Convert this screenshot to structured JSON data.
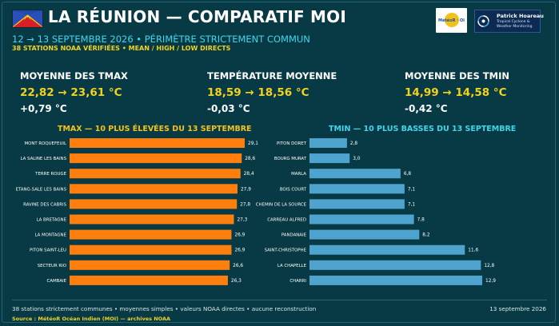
{
  "header": {
    "title": "LA RÉUNION — COMPARATIF MOI",
    "subtitle": "12 → 13 SEPTEMBRE 2026 • PÉRIMÈTRE STRICTEMENT COMMUN",
    "subline": "38 STATIONS NOAA VÉRIFIÉES • MEAN / HIGH / LOW DIRECTS",
    "logo_meteor": "MétéoR · OI",
    "logo_ph_name": "Patrick Hoareau",
    "logo_ph_line2": "Tropical Cyclone &",
    "logo_ph_line3": "Weather Monitoring"
  },
  "stats": [
    {
      "label": "MOYENNE DES TMAX",
      "value": "22,82 → 23,61 °C",
      "delta": "+0,79 °C"
    },
    {
      "label": "TEMPÉRATURE MOYENNE",
      "value": "18,59 → 18,56 °C",
      "delta": "-0,03 °C"
    },
    {
      "label": "MOYENNE DES TMIN",
      "value": "14,99 → 14,58 °C",
      "delta": "-0,42 °C"
    }
  ],
  "chart_data": [
    {
      "type": "bar",
      "orientation": "horizontal",
      "title": "TMAX — 10 PLUS ÉLEVÉES DU 13 SEPTEMBRE",
      "color": "#ff7f0e",
      "categories": [
        "MONT ROQUEFEUIL",
        "LA SALINE LES BAINS",
        "TERRE ROUGE",
        "ETANG-SALE LES BAINS",
        "RAVINE DES CABRIS",
        "LA BRETAGNE",
        "LA MONTAGNE",
        "PITON SAINT-LEU",
        "SECTEUR RIO",
        "CAMBAIE"
      ],
      "values": [
        29.1,
        28.6,
        28.4,
        27.9,
        27.8,
        27.3,
        26.9,
        26.9,
        26.6,
        26.3
      ],
      "labels": [
        "29,1",
        "28,6",
        "28,4",
        "27,9",
        "27,8",
        "27,3",
        "26,9",
        "26,9",
        "26,6",
        "26,3"
      ],
      "xlim": [
        0,
        29.1
      ]
    },
    {
      "type": "bar",
      "orientation": "horizontal",
      "title": "TMIN — 10 PLUS BASSES DU 13 SEPTEMBRE",
      "color": "#4fa3cf",
      "categories": [
        "PITON DORET",
        "BOURG MURAT",
        "MARLA",
        "BOIS COURT",
        "CHEMIN DE LA SOURCE",
        "CARREAU ALFRED",
        "PANDANAIE",
        "SAINT-CHRISTOPHE",
        "LA CHAPELLE",
        "CHARRI"
      ],
      "values": [
        2.8,
        3.0,
        6.8,
        7.1,
        7.1,
        7.8,
        8.2,
        11.6,
        12.8,
        12.9
      ],
      "labels": [
        "2,8",
        "3,0",
        "6,8",
        "7,1",
        "7,1",
        "7,8",
        "8,2",
        "11,6",
        "12,8",
        "12,9"
      ],
      "xlim": [
        0,
        12.9
      ]
    }
  ],
  "footer": {
    "note": "38 stations strictement communes • moyennes simples • valeurs NOAA directes • aucune reconstruction",
    "date": "13 septembre 2026",
    "source": "Source : MétéoR Océan Indien (MOI) — archives NOAA"
  }
}
